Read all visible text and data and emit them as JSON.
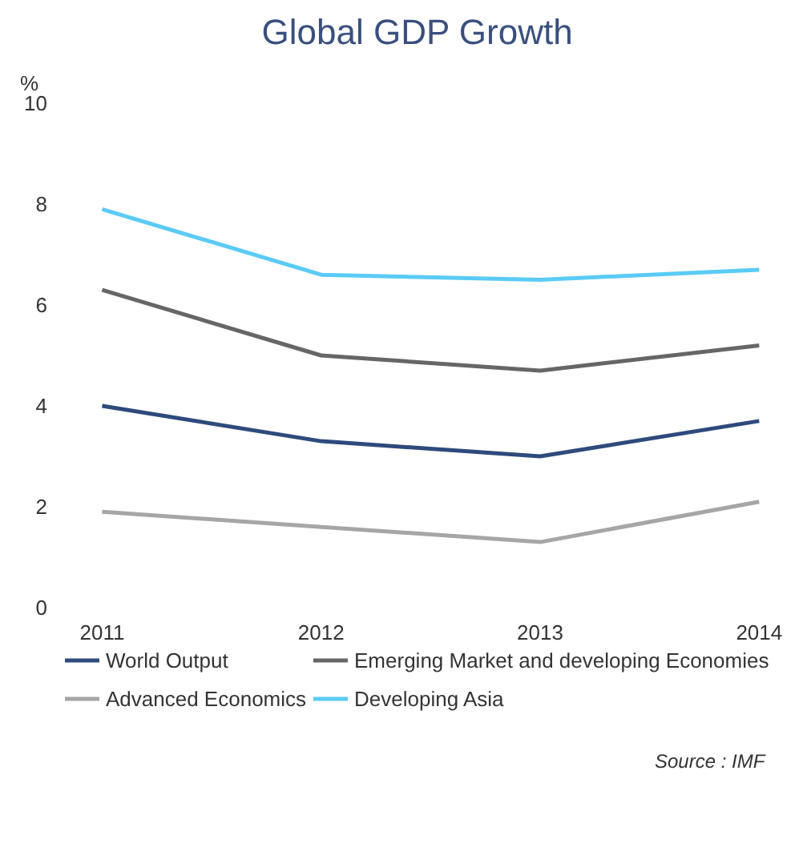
{
  "chart_data": {
    "type": "line",
    "title": "Global GDP Growth",
    "ylabel": "%",
    "categories": [
      "2011",
      "2012",
      "2013",
      "2014"
    ],
    "series": [
      {
        "name": "World Output",
        "color": "#2e4a7d",
        "values": [
          4.0,
          3.3,
          3.0,
          3.7
        ]
      },
      {
        "name": "Advanced Economics",
        "color": "#a6a6a6",
        "values": [
          1.9,
          1.6,
          1.3,
          2.1
        ]
      },
      {
        "name": "Emerging Market and developing Economies",
        "color": "#666666",
        "values": [
          6.3,
          5.0,
          4.7,
          5.2
        ]
      },
      {
        "name": "Developing Asia",
        "color": "#5bcbf5",
        "values": [
          7.9,
          6.6,
          6.5,
          6.7
        ]
      }
    ],
    "ylim": [
      0,
      10
    ],
    "yticks": [
      0,
      2,
      4,
      6,
      8,
      10
    ],
    "grid": false,
    "legend": "bottom",
    "marker": "none",
    "line_style": "solid",
    "annotations": [
      "Source :  IMF"
    ]
  }
}
